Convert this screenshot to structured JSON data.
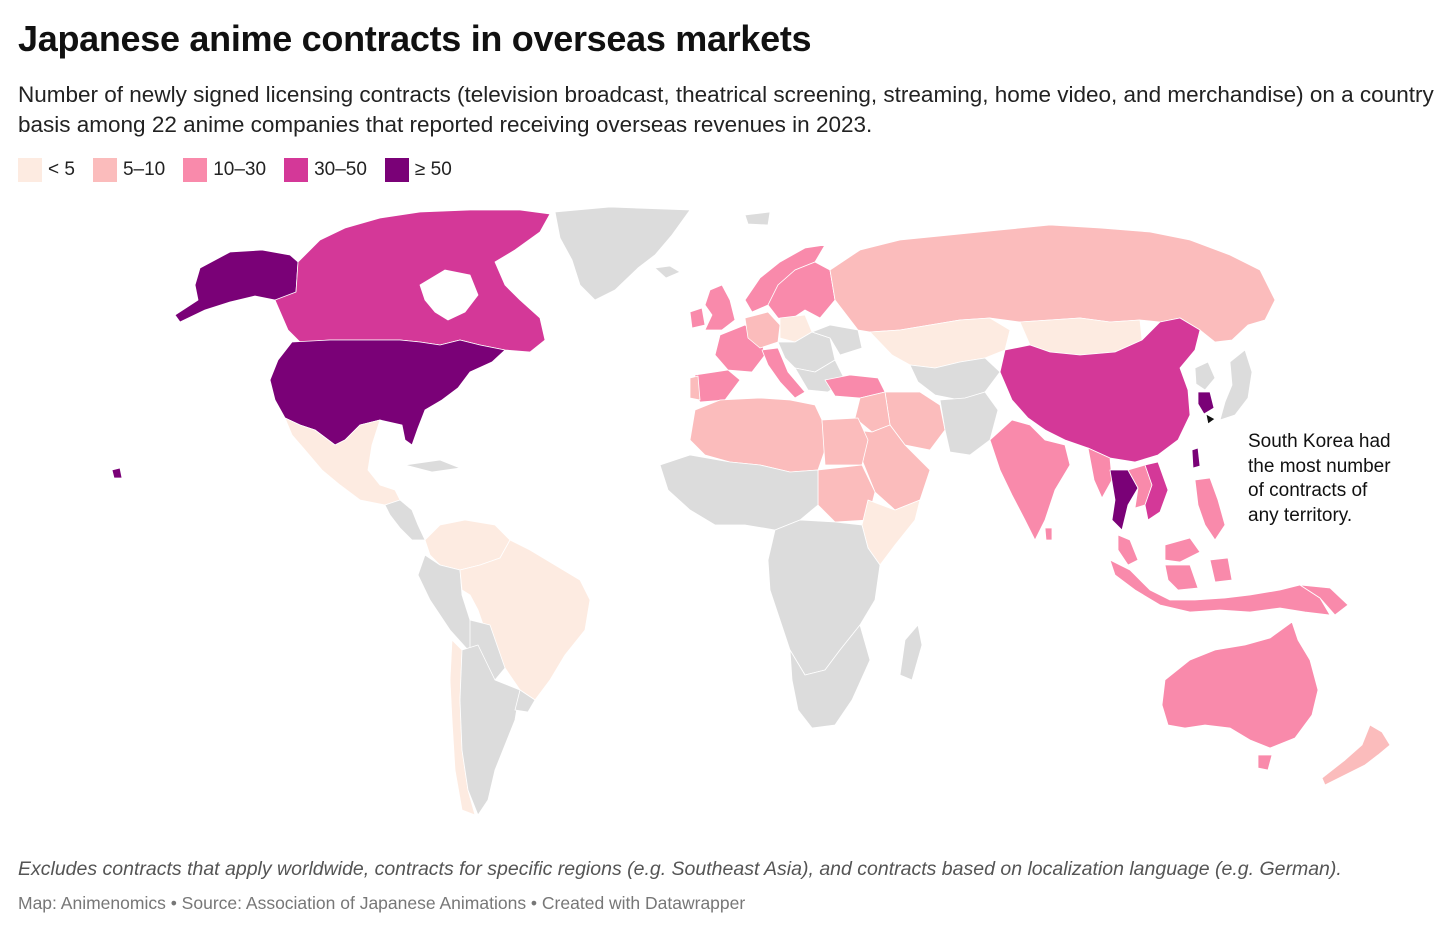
{
  "title": "Japanese anime contracts in overseas markets",
  "subtitle": "Number of newly signed licensing contracts (television broadcast, theatrical screening, streaming, home video, and merchandise) on a country basis among 22 anime companies that reported receiving overseas revenues in 2023.",
  "legend": [
    {
      "label": "< 5",
      "color": "#fdebe1"
    },
    {
      "label": "5–10",
      "color": "#fbbcbc"
    },
    {
      "label": "10–30",
      "color": "#f98aab"
    },
    {
      "label": "30–50",
      "color": "#d43898"
    },
    {
      "label": "≥ 50",
      "color": "#7a0177"
    }
  ],
  "no_data_color": "#dcdcdc",
  "annotation": {
    "lines": [
      "South Korea had",
      "the most number",
      "of contracts of",
      "any territory."
    ]
  },
  "note": "Excludes contracts that apply worldwide, contracts for specific regions (e.g. Southeast Asia), and contracts based on localization language (e.g. German).",
  "source": "Map: Animenomics • Source: Association of Japanese Animations • Created with Datawrapper",
  "map_data": {
    "bins": {
      "United States": "≥ 50",
      "South Korea": "≥ 50",
      "Taiwan": "≥ 50",
      "Thailand": "≥ 50",
      "Canada": "30–50",
      "China": "30–50",
      "Vietnam": "30–50",
      "Australia": "10–30",
      "India": "10–30",
      "France": "10–30",
      "United Kingdom": "10–30",
      "Italy": "10–30",
      "Spain": "10–30",
      "Turkey": "10–30",
      "Indonesia": "10–30",
      "Philippines": "10–30",
      "Malaysia": "10–30",
      "Norway": "10–30",
      "Sweden": "10–30",
      "Russia": "5–10",
      "Egypt": "5–10",
      "Saudi Arabia": "5–10",
      "Iran": "5–10",
      "New Zealand": "5–10",
      "Mexico": "< 5",
      "Brazil": "< 5",
      "Kazakhstan": "< 5",
      "Mongolia": "< 5",
      "Ethiopia": "< 5"
    }
  }
}
